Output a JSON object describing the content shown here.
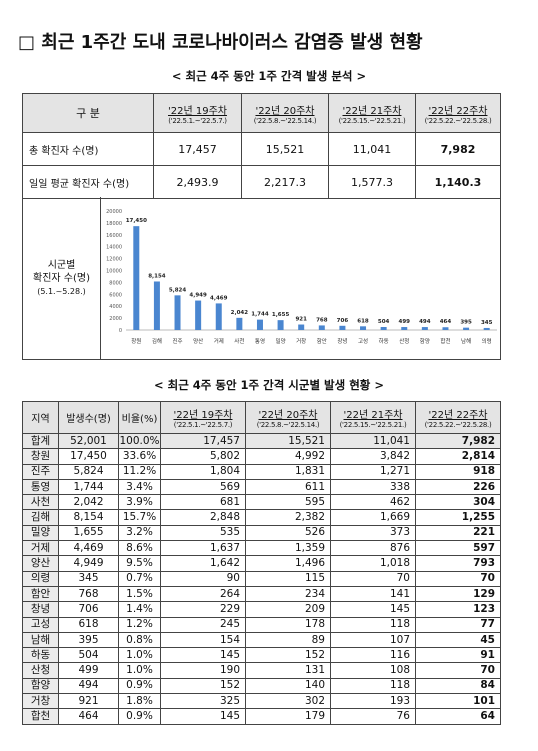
{
  "title": "□ 최근 1주간 도내 코로나바이러스 감염증 발생 현황",
  "section1": {
    "heading": "< 최근 4주 동안 1주 간격 발생 분석 >",
    "table": {
      "header": [
        "구 분",
        {
          "week": "'22년 19주차",
          "range": "('22.5.1.~'22.5.7.)"
        },
        {
          "week": "'22년 20주차",
          "range": "('22.5.8.~'22.5.14.)"
        },
        {
          "week": "'22년 21주차",
          "range": "('22.5.15.~'22.5.21.)"
        },
        {
          "week": "'22년 22주차",
          "range": "('22.5.22.~'22.5.28.)"
        }
      ],
      "rows": [
        [
          "총 확진자 수(명)",
          "17,457",
          "15,521",
          "11,041",
          "7,982"
        ],
        [
          "일일 평균 확진자 수(명)",
          "2,493.9",
          "2,217.3",
          "1,577.3",
          "1,140.3"
        ]
      ],
      "chart_label": [
        "시군별",
        "확진자 수(명)",
        "(5.1.~5.28.)"
      ]
    }
  },
  "chart_data": {
    "type": "bar",
    "categories": [
      "창원",
      "김해",
      "진주",
      "양산",
      "거제",
      "사천",
      "통영",
      "밀양",
      "거창",
      "함안",
      "창녕",
      "고성",
      "하동",
      "산청",
      "함양",
      "합천",
      "남해",
      "의령"
    ],
    "values": [
      17450,
      8154,
      5824,
      4949,
      4469,
      2042,
      1744,
      1655,
      921,
      768,
      706,
      618,
      504,
      499,
      494,
      464,
      395,
      345
    ],
    "value_labels": [
      "17,450",
      "8,154",
      "5,824",
      "4,949",
      "4,469",
      "2,042",
      "1,744",
      "1,655",
      "921",
      "768",
      "706",
      "618",
      "504",
      "499",
      "494",
      "464",
      "395",
      "345"
    ],
    "color": "#4a86d0",
    "ylim": [
      0,
      20000
    ],
    "yticks": [
      0,
      2000,
      4000,
      6000,
      8000,
      10000,
      12000,
      14000,
      16000,
      18000,
      20000
    ],
    "grid": false
  },
  "section2": {
    "heading": "< 최근 4주 동안 1주 간격 시군별 발생 현황 >",
    "table": {
      "header": [
        "지역",
        "발생수(명)",
        "비율(%)",
        {
          "week": "'22년 19주차",
          "range": "('22.5.1.~'22.5.7.)"
        },
        {
          "week": "'22년 20주차",
          "range": "('22.5.8.~'22.5.14.)"
        },
        {
          "week": "'22년 21주차",
          "range": "('22.5.15.~'22.5.21.)"
        },
        {
          "week": "'22년 22주차",
          "range": "('22.5.22.~'22.5.28.)"
        }
      ],
      "rows": [
        [
          "합계",
          "52,001",
          "100.0%",
          "17,457",
          "15,521",
          "11,041",
          "7,982"
        ],
        [
          "창원",
          "17,450",
          "33.6%",
          "5,802",
          "4,992",
          "3,842",
          "2,814"
        ],
        [
          "진주",
          "5,824",
          "11.2%",
          "1,804",
          "1,831",
          "1,271",
          "918"
        ],
        [
          "통영",
          "1,744",
          "3.4%",
          "569",
          "611",
          "338",
          "226"
        ],
        [
          "사천",
          "2,042",
          "3.9%",
          "681",
          "595",
          "462",
          "304"
        ],
        [
          "김해",
          "8,154",
          "15.7%",
          "2,848",
          "2,382",
          "1,669",
          "1,255"
        ],
        [
          "밀양",
          "1,655",
          "3.2%",
          "535",
          "526",
          "373",
          "221"
        ],
        [
          "거제",
          "4,469",
          "8.6%",
          "1,637",
          "1,359",
          "876",
          "597"
        ],
        [
          "양산",
          "4,949",
          "9.5%",
          "1,642",
          "1,496",
          "1,018",
          "793"
        ],
        [
          "의령",
          "345",
          "0.7%",
          "90",
          "115",
          "70",
          "70"
        ],
        [
          "함안",
          "768",
          "1.5%",
          "264",
          "234",
          "141",
          "129"
        ],
        [
          "창녕",
          "706",
          "1.4%",
          "229",
          "209",
          "145",
          "123"
        ],
        [
          "고성",
          "618",
          "1.2%",
          "245",
          "178",
          "118",
          "77"
        ],
        [
          "남해",
          "395",
          "0.8%",
          "154",
          "89",
          "107",
          "45"
        ],
        [
          "하동",
          "504",
          "1.0%",
          "145",
          "152",
          "116",
          "91"
        ],
        [
          "산청",
          "499",
          "1.0%",
          "190",
          "131",
          "108",
          "70"
        ],
        [
          "함양",
          "494",
          "0.9%",
          "152",
          "140",
          "118",
          "84"
        ],
        [
          "거창",
          "921",
          "1.8%",
          "325",
          "302",
          "193",
          "101"
        ],
        [
          "합천",
          "464",
          "0.9%",
          "145",
          "179",
          "76",
          "64"
        ]
      ]
    }
  }
}
